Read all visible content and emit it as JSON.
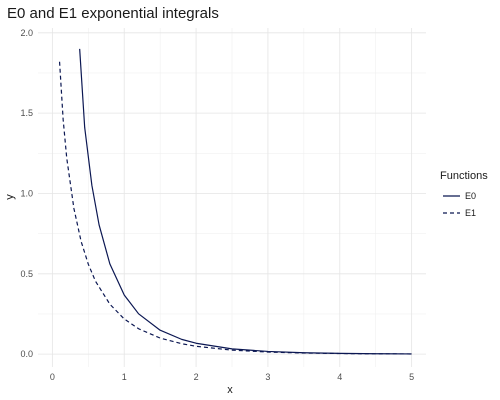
{
  "chart_data": {
    "type": "line",
    "title": "E0 and E1 exponential integrals",
    "xlabel": "x",
    "ylabel": "y",
    "xlim": [
      -0.2,
      5.2
    ],
    "ylim": [
      -0.08,
      2.03
    ],
    "x_ticks": [
      0,
      1,
      2,
      3,
      4,
      5
    ],
    "x_tick_labels": [
      "0",
      "1",
      "2",
      "3",
      "4",
      "5"
    ],
    "y_ticks": [
      0.0,
      0.5,
      1.0,
      1.5,
      2.0
    ],
    "y_tick_labels": [
      "0.0",
      "0.5",
      "1.0",
      "1.5",
      "2.0"
    ],
    "grid": true,
    "legend": {
      "title": "Functions",
      "position": "right"
    },
    "series": [
      {
        "name": "E0",
        "line_style": "solid",
        "color": "#0b1752",
        "x": [
          0.38,
          0.45,
          0.55,
          0.65,
          0.8,
          1.0,
          1.2,
          1.5,
          1.8,
          2.0,
          2.5,
          3.0,
          3.5,
          4.0,
          4.5,
          5.0
        ],
        "y": [
          1.9,
          1.41,
          1.05,
          0.805,
          0.562,
          0.368,
          0.251,
          0.149,
          0.092,
          0.068,
          0.033,
          0.017,
          0.0086,
          0.0046,
          0.0025,
          0.0013
        ]
      },
      {
        "name": "E1",
        "line_style": "dashed",
        "color": "#0b1752",
        "x": [
          0.1,
          0.15,
          0.2,
          0.3,
          0.4,
          0.5,
          0.6,
          0.8,
          1.0,
          1.2,
          1.5,
          1.8,
          2.0,
          2.5,
          3.0,
          3.5,
          4.0,
          4.5,
          5.0
        ],
        "y": [
          1.82,
          1.46,
          1.22,
          0.906,
          0.702,
          0.56,
          0.454,
          0.311,
          0.219,
          0.158,
          0.1,
          0.065,
          0.049,
          0.025,
          0.013,
          0.007,
          0.0038,
          0.002,
          0.0011
        ]
      }
    ]
  }
}
